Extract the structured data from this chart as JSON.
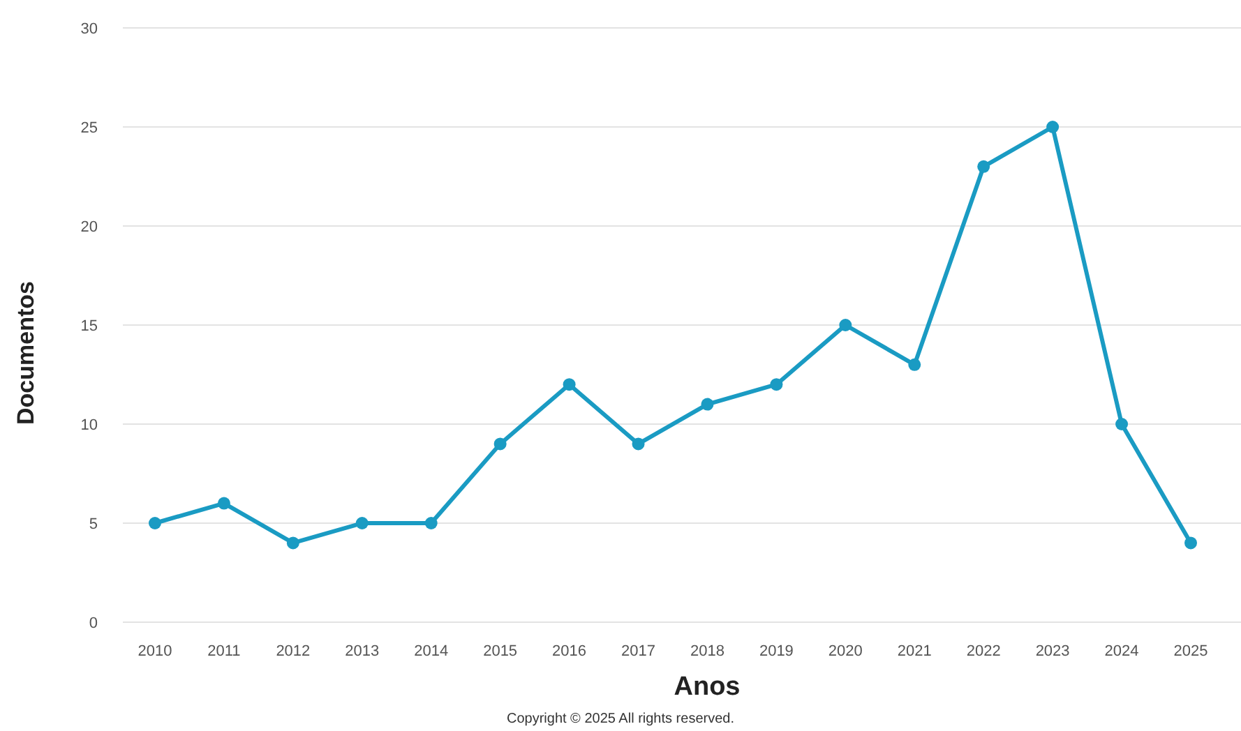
{
  "chart_data": {
    "type": "line",
    "xlabel": "Anos",
    "ylabel": "Documentos",
    "categories": [
      "2010",
      "2011",
      "2012",
      "2013",
      "2014",
      "2015",
      "2016",
      "2017",
      "2018",
      "2019",
      "2020",
      "2021",
      "2022",
      "2023",
      "2024",
      "2025"
    ],
    "series": [
      {
        "color": "#1a9bc3",
        "values": [
          5,
          6,
          4,
          5,
          5,
          9,
          12,
          9,
          11,
          12,
          15,
          13,
          23,
          25,
          10,
          4
        ]
      }
    ],
    "ylim": [
      0,
      30
    ],
    "yticks": [
      0,
      5,
      10,
      15,
      20,
      25,
      30
    ],
    "grid": "y",
    "marker": "circle",
    "line_style": "solid",
    "annotations": [
      "Copyright © 2025 All rights reserved."
    ]
  }
}
